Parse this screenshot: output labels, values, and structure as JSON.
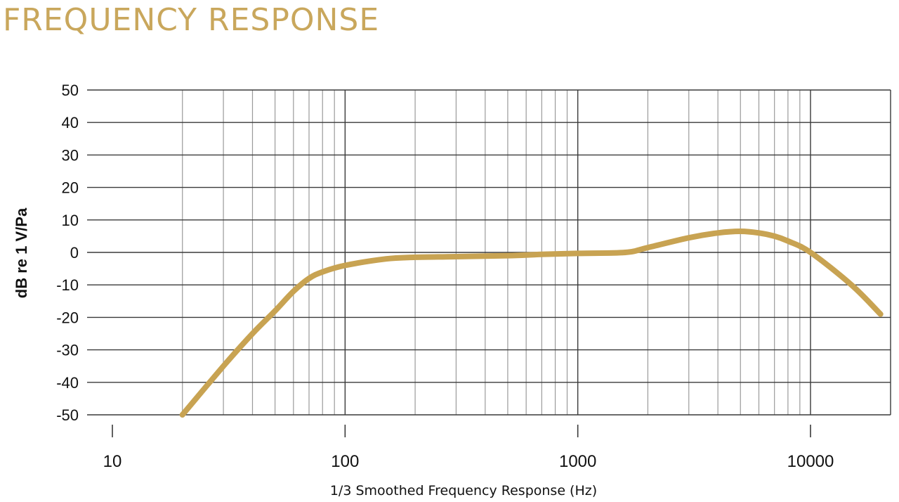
{
  "colors": {
    "curve": "#c8a352",
    "title": "#c9a75c",
    "grid_major": "#3a3a3a",
    "grid_minor": "#9a9a9a"
  },
  "page": {
    "title": "FREQUENCY RESPONSE"
  },
  "chart_data": {
    "type": "line",
    "title": "FREQUENCY RESPONSE",
    "xlabel": "1/3 Smoothed Frequency Response (Hz)",
    "ylabel": "dB re 1 V/Pa",
    "xscale": "log",
    "xlim": [
      10,
      20000
    ],
    "ylim": [
      -50,
      50
    ],
    "xticks": [
      10,
      100,
      1000,
      10000
    ],
    "xtick_labels": [
      "10",
      "100",
      "1000",
      "10000"
    ],
    "yticks": [
      50,
      40,
      30,
      20,
      10,
      0,
      -10,
      -20,
      -30,
      -40,
      -50
    ],
    "ytick_labels": [
      "50",
      "40",
      "30",
      "20",
      "10",
      "0",
      "-10",
      "-20",
      "-30",
      "-40",
      "-50"
    ],
    "grid": true,
    "series": [
      {
        "x": [
          20,
          30,
          40,
          50,
          60,
          70,
          80,
          100,
          150,
          200,
          300,
          500,
          700,
          1000,
          1600,
          2000,
          3000,
          4000,
          5000,
          6000,
          7000,
          8000,
          10000,
          15000,
          20000
        ],
        "y": [
          -50,
          -35,
          -25,
          -18,
          -12,
          -8,
          -6,
          -4,
          -2,
          -1.5,
          -1.3,
          -1,
          -0.6,
          -0.3,
          0,
          1.5,
          4.5,
          6,
          6.5,
          6,
          5,
          3.5,
          0,
          -10,
          -19
        ]
      }
    ]
  }
}
